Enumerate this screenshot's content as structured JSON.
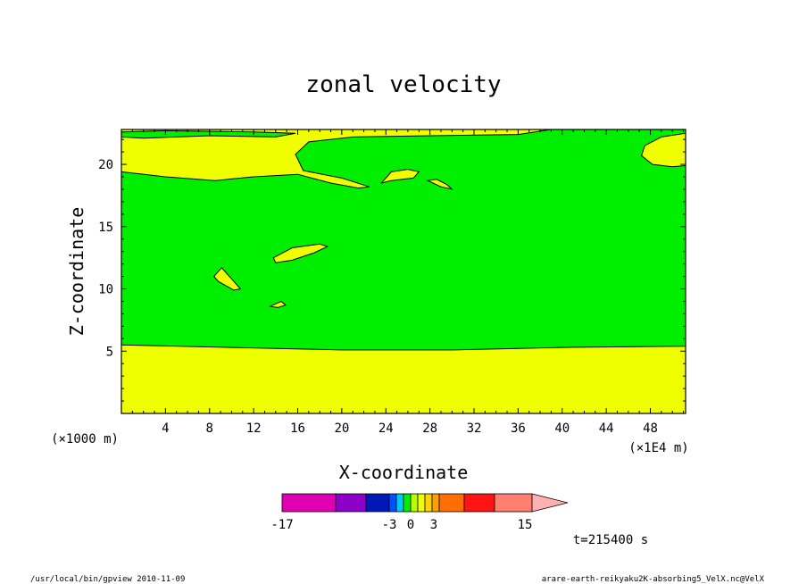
{
  "title": "zonal velocity",
  "footer_left": "/usr/local/bin/gpview   2010-11-09",
  "footer_right": "arare-earth-reikyaku2K-absorbing5_VelX.nc@VelX",
  "time_label": "t=215400 s",
  "chart_data": {
    "type": "contour",
    "title": "zonal velocity",
    "xlabel": "X-coordinate",
    "ylabel": "Z-coordinate",
    "x_unit_left": "(×1000 m)",
    "x_unit_right": "(×1E4 m)",
    "xlim": [
      0,
      51.2
    ],
    "ylim": [
      0,
      22.8
    ],
    "xticks": [
      4,
      8,
      12,
      16,
      20,
      24,
      28,
      32,
      36,
      40,
      44,
      48
    ],
    "yticks": [
      5,
      10,
      15,
      20
    ],
    "fill_colors": {
      "positive_0_to_1": "#f0ff00",
      "negative_-1_to_0": "#00ee00"
    },
    "regions": [
      {
        "name": "lower-positive",
        "level": "positive",
        "points": [
          [
            0,
            0
          ],
          [
            51.2,
            0
          ],
          [
            51.2,
            5.4
          ],
          [
            40,
            5.3
          ],
          [
            30,
            5.1
          ],
          [
            20,
            5.1
          ],
          [
            10,
            5.3
          ],
          [
            0,
            5.5
          ]
        ]
      },
      {
        "name": "upper-positive-left",
        "level": "positive",
        "points": [
          [
            0,
            19.4
          ],
          [
            4,
            19.0
          ],
          [
            8.5,
            18.7
          ],
          [
            12,
            19.0
          ],
          [
            16,
            19.2
          ],
          [
            19,
            18.5
          ],
          [
            21.5,
            18.1
          ],
          [
            22.5,
            18.2
          ],
          [
            20,
            18.9
          ],
          [
            16.5,
            19.5
          ],
          [
            15.8,
            20.8
          ],
          [
            17,
            21.8
          ],
          [
            21,
            22.2
          ],
          [
            28,
            22.3
          ],
          [
            36,
            22.4
          ],
          [
            39,
            22.8
          ],
          [
            0,
            22.8
          ],
          [
            0,
            22.6
          ],
          [
            4,
            22.7
          ],
          [
            12,
            22.6
          ],
          [
            15.8,
            22.5
          ],
          [
            14,
            22.2
          ],
          [
            8,
            22.3
          ],
          [
            2,
            22.1
          ],
          [
            0,
            22.2
          ]
        ]
      },
      {
        "name": "upper-right-blob",
        "level": "positive",
        "points": [
          [
            51.2,
            22.5
          ],
          [
            49,
            22.2
          ],
          [
            47.5,
            21.5
          ],
          [
            47.2,
            20.7
          ],
          [
            48.2,
            20.0
          ],
          [
            50,
            19.8
          ],
          [
            51.2,
            19.9
          ]
        ]
      },
      {
        "name": "blob-24",
        "level": "positive",
        "points": [
          [
            23.6,
            18.5
          ],
          [
            24.5,
            19.4
          ],
          [
            26,
            19.6
          ],
          [
            27,
            19.4
          ],
          [
            26.5,
            18.9
          ],
          [
            24.5,
            18.7
          ]
        ]
      },
      {
        "name": "blob-28",
        "level": "positive",
        "points": [
          [
            27.8,
            18.7
          ],
          [
            28.6,
            18.8
          ],
          [
            29.5,
            18.4
          ],
          [
            30,
            18.0
          ],
          [
            29,
            18.2
          ]
        ]
      },
      {
        "name": "blob-16",
        "level": "positive",
        "points": [
          [
            13.8,
            12.5
          ],
          [
            15.5,
            13.3
          ],
          [
            18,
            13.6
          ],
          [
            18.7,
            13.4
          ],
          [
            17.5,
            12.9
          ],
          [
            15.5,
            12.3
          ],
          [
            14,
            12.1
          ]
        ]
      },
      {
        "name": "blob-10",
        "level": "positive",
        "points": [
          [
            8.4,
            11.0
          ],
          [
            9.1,
            11.7
          ],
          [
            9.8,
            11.0
          ],
          [
            10.8,
            10.0
          ],
          [
            10.2,
            9.9
          ],
          [
            8.8,
            10.6
          ]
        ]
      },
      {
        "name": "blob-14",
        "level": "positive",
        "points": [
          [
            13.5,
            8.6
          ],
          [
            14.5,
            9.0
          ],
          [
            14.9,
            8.7
          ],
          [
            14.2,
            8.5
          ]
        ]
      }
    ],
    "colorbar": {
      "colors": [
        "#e000b4",
        "#8c00c8",
        "#0018b8",
        "#0050ff",
        "#00c8ff",
        "#00ee00",
        "#b4ff00",
        "#f0ff00",
        "#ffd200",
        "#ffa000",
        "#ff6e00",
        "#ff1414",
        "#ff8070"
      ],
      "tip_color": "#ffb0b0",
      "tick_labels": [
        "-17",
        "-3",
        "0",
        "3",
        "15"
      ]
    }
  }
}
